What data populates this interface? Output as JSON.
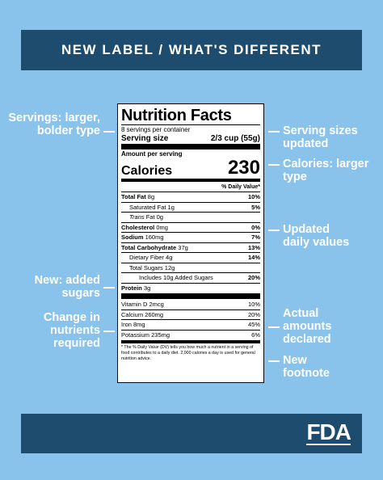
{
  "banner": {
    "title": "NEW LABEL / WHAT'S DIFFERENT"
  },
  "footer": {
    "logo": "FDA"
  },
  "callouts_left": [
    {
      "text": "Servings: larger, bolder type"
    },
    {
      "text": "New: added sugars"
    },
    {
      "text": "Change in nutrients required"
    }
  ],
  "callouts_right": [
    {
      "text": "Serving sizes updated"
    },
    {
      "text": "Calories: larger type"
    },
    {
      "text": "Updated daily values"
    },
    {
      "text": "Actual amounts declared"
    },
    {
      "text": "New footnote"
    }
  ],
  "label": {
    "title": "Nutrition Facts",
    "servings_per_container": "8 servings per container",
    "serving_size_label": "Serving size",
    "serving_size_value": "2/3 cup (55g)",
    "amount_per_serving": "Amount per serving",
    "calories_label": "Calories",
    "calories_value": "230",
    "dv_header": "% Daily Value*",
    "nutrients": [
      {
        "name": "Total Fat",
        "amount": "8g",
        "dv": "10%"
      },
      {
        "name": "Saturated Fat",
        "amount": "1g",
        "dv": "5%"
      },
      {
        "name": "Trans",
        "amount": "Fat 0g",
        "dv": ""
      },
      {
        "name": "Cholesterol",
        "amount": "0mg",
        "dv": "0%"
      },
      {
        "name": "Sodium",
        "amount": "160mg",
        "dv": "7%"
      },
      {
        "name": "Total Carbohydrate",
        "amount": "37g",
        "dv": "13%"
      },
      {
        "name": "Dietary Fiber",
        "amount": "4g",
        "dv": "14%"
      },
      {
        "name": "Total Sugars",
        "amount": "12g",
        "dv": ""
      },
      {
        "name": "Includes 10g Added Sugars",
        "amount": "",
        "dv": "20%"
      },
      {
        "name": "Protein",
        "amount": "3g",
        "dv": ""
      }
    ],
    "vitamins": [
      {
        "text": "Vitamin D 2mcg",
        "dv": "10%"
      },
      {
        "text": "Calcium 260mg",
        "dv": "20%"
      },
      {
        "text": "Iron 8mg",
        "dv": "45%"
      },
      {
        "text": "Potassium 235mg",
        "dv": "6%"
      }
    ],
    "footnote": "* The % Daily Value (DV) tells you how much a nutrient in a serving of food contributes to a daily diet. 2,000 calories a day is used for general nutrition advice."
  }
}
